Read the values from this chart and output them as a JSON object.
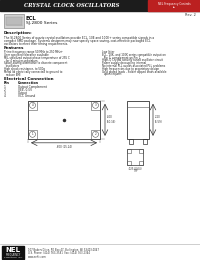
{
  "title": "CRYSTAL CLOCK OSCILLATORS",
  "red_label": "NEL Frequency Controls",
  "rev": "Rev. 2",
  "series_title": "ECL",
  "series_subtitle": "SJ-2800 Series",
  "header_bg": "#1c1c1c",
  "header_text_color": "#ffffff",
  "red_box_color": "#bb2020",
  "description_title": "Description:",
  "description_text": [
    "The SJ-2800 Series of quartz crystal oscillators provide ECL, 10E and 100E+ series compatible signals in a",
    "compact SMD package. Systems designers may now specify space-saving, cost-effective packaged ECL",
    "oscillators to meet their timing requirements."
  ],
  "features_title": "Features",
  "features_left": [
    "Prime frequency range 50 MHz to 250 MHz+",
    "User specified tolerance available",
    "MIL-stabilized output phase temperature of 255 C",
    "  for 4 minutes maximum",
    "Space-saving alternative to discrete component",
    "  oscillators",
    "High shock resistance, to 500g",
    "Metal lid electrically connected to ground to",
    "  reduce EMI"
  ],
  "features_right": [
    "Low Jitter",
    "ECL, 10K, and 100K series compatible output on",
    "  Pin 3, complement on Pin 1",
    "High-Q Crystal actively tuned oscillator circuit",
    "Power supply decoupling internal",
    "No internal PLL avoids associated PLL problems",
    "High frequencies due to proprietary design",
    "Gold plated leads - Solder dipped leads available",
    "  upon request"
  ],
  "pin_title": "Electrical Connection",
  "pin_col1": "Pin",
  "pin_col2": "Connection",
  "pins": [
    [
      "1",
      "Output Complement"
    ],
    [
      "2",
      "VEE, 0-5V"
    ],
    [
      "3",
      "Output"
    ],
    [
      "4",
      "VCC Ground"
    ]
  ],
  "footer_company": "NEL\nFREQUENCY\nCONTROLS, INC.",
  "footer_address": "107 Bakers Drive, PO Box 47, Burlington, WI 53403-0047",
  "footer_phone": "U.S. Phone: (414) 763-3581  Fax: (414) 763-2344",
  "footer_web": "www.nelfc.com",
  "body_bg": "#ffffff"
}
